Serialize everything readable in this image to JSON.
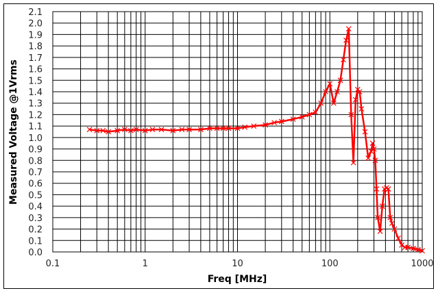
{
  "chart_data": {
    "type": "line",
    "title": "",
    "xlabel": "Freq [MHz]",
    "ylabel": "Measured Voltage @1Vrms",
    "xscale": "log",
    "xlim": [
      0.1,
      1000
    ],
    "ylim": [
      0.0,
      2.1
    ],
    "grid": true,
    "legend": "none",
    "x_ticks": [
      "0.1",
      "1",
      "10",
      "100",
      "1000"
    ],
    "y_ticks": [
      "0.0",
      "0.1",
      "0.2",
      "0.3",
      "0.4",
      "0.5",
      "0.6",
      "0.7",
      "0.8",
      "0.9",
      "1.0",
      "1.1",
      "1.2",
      "1.3",
      "1.4",
      "1.5",
      "1.6",
      "1.7",
      "1.8",
      "1.9",
      "2.0",
      "2.1"
    ],
    "series": [
      {
        "name": "Measured Voltage",
        "color": "#ff0000",
        "marker": "x",
        "x": [
          0.25,
          0.3,
          0.35,
          0.4,
          0.5,
          0.6,
          0.7,
          0.8,
          1,
          1.2,
          1.5,
          2,
          2.5,
          3,
          4,
          5,
          6,
          7,
          8,
          10,
          12,
          15,
          20,
          25,
          30,
          40,
          50,
          60,
          70,
          80,
          90,
          100,
          110,
          120,
          130,
          140,
          150,
          160,
          170,
          180,
          190,
          200,
          210,
          220,
          240,
          260,
          280,
          290,
          300,
          310,
          320,
          330,
          350,
          370,
          390,
          410,
          430,
          450,
          470,
          500,
          550,
          600,
          650,
          700,
          800,
          900,
          1000
        ],
        "y": [
          1.07,
          1.06,
          1.06,
          1.05,
          1.06,
          1.07,
          1.06,
          1.07,
          1.06,
          1.07,
          1.07,
          1.06,
          1.07,
          1.07,
          1.07,
          1.08,
          1.08,
          1.08,
          1.08,
          1.08,
          1.09,
          1.1,
          1.11,
          1.13,
          1.14,
          1.16,
          1.18,
          1.2,
          1.22,
          1.3,
          1.4,
          1.47,
          1.3,
          1.4,
          1.5,
          1.68,
          1.85,
          1.95,
          1.2,
          0.78,
          1.33,
          1.42,
          1.4,
          1.25,
          1.05,
          0.82,
          0.88,
          0.95,
          0.9,
          0.8,
          0.55,
          0.3,
          0.18,
          0.4,
          0.55,
          0.56,
          0.55,
          0.3,
          0.25,
          0.2,
          0.12,
          0.06,
          0.04,
          0.04,
          0.03,
          0.02,
          0.01
        ]
      }
    ]
  }
}
